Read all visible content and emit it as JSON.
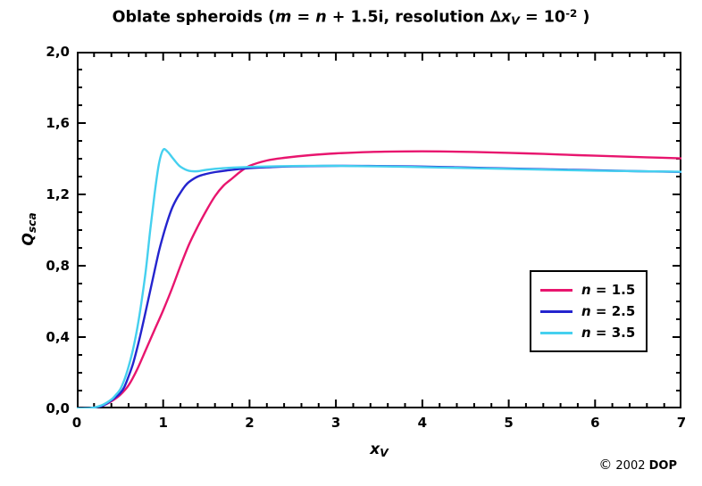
{
  "title": {
    "segments": [
      {
        "t": "Oblate spheroids (",
        "s": "b"
      },
      {
        "t": "m",
        "s": "bi"
      },
      {
        "t": " = ",
        "s": "b"
      },
      {
        "t": "n",
        "s": "bi"
      },
      {
        "t": " + 1.5i, resolution ∆",
        "s": "b"
      },
      {
        "t": "x",
        "s": "bi"
      },
      {
        "t": "V",
        "s": "bi-sub"
      },
      {
        "t": " = 10",
        "s": "b"
      },
      {
        "t": "-2",
        "s": "b-sup"
      },
      {
        "t": " )",
        "s": "b"
      }
    ]
  },
  "y_axis": {
    "label_segments": [
      {
        "t": "Q",
        "s": "bi"
      },
      {
        "t": "sca",
        "s": "bi-sub"
      }
    ],
    "ticks": [
      {
        "v": 0.0,
        "label": "0,0"
      },
      {
        "v": 0.4,
        "label": "0,4"
      },
      {
        "v": 0.8,
        "label": "0,8"
      },
      {
        "v": 1.2,
        "label": "1,2"
      },
      {
        "v": 1.6,
        "label": "1,6"
      },
      {
        "v": 2.0,
        "label": "2,0"
      }
    ]
  },
  "x_axis": {
    "label_segments": [
      {
        "t": "x",
        "s": "bi"
      },
      {
        "t": "V",
        "s": "bi-sub"
      }
    ],
    "ticks": [
      {
        "v": 0,
        "label": "0"
      },
      {
        "v": 1,
        "label": "1"
      },
      {
        "v": 2,
        "label": "2"
      },
      {
        "v": 3,
        "label": "3"
      },
      {
        "v": 4,
        "label": "4"
      },
      {
        "v": 5,
        "label": "5"
      },
      {
        "v": 6,
        "label": "6"
      },
      {
        "v": 7,
        "label": "7"
      }
    ]
  },
  "legend": {
    "items": [
      {
        "series": 0,
        "segments": [
          {
            "t": "n",
            "s": "bi"
          },
          {
            "t": " = 1.5",
            "s": "b"
          }
        ]
      },
      {
        "series": 1,
        "segments": [
          {
            "t": "n",
            "s": "bi"
          },
          {
            "t": " = 2.5",
            "s": "b"
          }
        ]
      },
      {
        "series": 2,
        "segments": [
          {
            "t": "n",
            "s": "bi"
          },
          {
            "t": " = 3.5",
            "s": "b"
          }
        ]
      }
    ]
  },
  "footer": {
    "segments": [
      {
        "t": "©",
        "s": "sym"
      },
      {
        "t": " 2002  ",
        "s": "r"
      },
      {
        "t": "DOP",
        "s": "b"
      }
    ]
  },
  "chart_data": {
    "type": "line",
    "title": "Oblate spheroids (m = n + 1.5i, resolution Δx_V = 10^-2 )",
    "xlabel": "x_V",
    "ylabel": "Q_sca",
    "xlim": [
      0,
      7
    ],
    "ylim": [
      0,
      2
    ],
    "x_major_tick": 1,
    "x_minor_tick": 0.2,
    "y_major_tick": 0.4,
    "y_minor_tick": 0.1,
    "decimal_separator": ",",
    "grid": false,
    "legend_position": "inside-right-middle",
    "series": [
      {
        "name": "n = 1.5",
        "color": "#e8156e",
        "points": [
          [
            0,
            0
          ],
          [
            0.1,
            0
          ],
          [
            0.2,
            0.005
          ],
          [
            0.3,
            0.015
          ],
          [
            0.4,
            0.04
          ],
          [
            0.5,
            0.075
          ],
          [
            0.6,
            0.13
          ],
          [
            0.7,
            0.22
          ],
          [
            0.8,
            0.33
          ],
          [
            0.9,
            0.44
          ],
          [
            1.0,
            0.55
          ],
          [
            1.1,
            0.67
          ],
          [
            1.2,
            0.8
          ],
          [
            1.3,
            0.92
          ],
          [
            1.4,
            1.02
          ],
          [
            1.5,
            1.11
          ],
          [
            1.6,
            1.19
          ],
          [
            1.7,
            1.25
          ],
          [
            1.8,
            1.29
          ],
          [
            1.9,
            1.33
          ],
          [
            2.0,
            1.36
          ],
          [
            2.2,
            1.39
          ],
          [
            2.4,
            1.405
          ],
          [
            2.7,
            1.42
          ],
          [
            3.0,
            1.43
          ],
          [
            3.4,
            1.438
          ],
          [
            3.8,
            1.441
          ],
          [
            4.2,
            1.441
          ],
          [
            4.6,
            1.438
          ],
          [
            5.0,
            1.433
          ],
          [
            5.4,
            1.427
          ],
          [
            5.8,
            1.42
          ],
          [
            6.2,
            1.414
          ],
          [
            6.6,
            1.408
          ],
          [
            7.0,
            1.402
          ]
        ]
      },
      {
        "name": "n = 2.5",
        "color": "#2424ce",
        "points": [
          [
            0,
            0
          ],
          [
            0.1,
            0
          ],
          [
            0.2,
            0.005
          ],
          [
            0.3,
            0.015
          ],
          [
            0.4,
            0.045
          ],
          [
            0.5,
            0.085
          ],
          [
            0.55,
            0.12
          ],
          [
            0.6,
            0.18
          ],
          [
            0.65,
            0.25
          ],
          [
            0.7,
            0.34
          ],
          [
            0.75,
            0.44
          ],
          [
            0.8,
            0.55
          ],
          [
            0.85,
            0.66
          ],
          [
            0.9,
            0.77
          ],
          [
            0.95,
            0.88
          ],
          [
            1.0,
            0.97
          ],
          [
            1.05,
            1.05
          ],
          [
            1.1,
            1.12
          ],
          [
            1.15,
            1.17
          ],
          [
            1.2,
            1.21
          ],
          [
            1.25,
            1.245
          ],
          [
            1.3,
            1.27
          ],
          [
            1.4,
            1.3
          ],
          [
            1.5,
            1.315
          ],
          [
            1.6,
            1.325
          ],
          [
            1.8,
            1.338
          ],
          [
            2.0,
            1.347
          ],
          [
            2.2,
            1.352
          ],
          [
            2.5,
            1.357
          ],
          [
            3.0,
            1.36
          ],
          [
            3.5,
            1.359
          ],
          [
            4.0,
            1.356
          ],
          [
            4.5,
            1.351
          ],
          [
            5.0,
            1.345
          ],
          [
            5.5,
            1.34
          ],
          [
            6.0,
            1.335
          ],
          [
            6.5,
            1.33
          ],
          [
            7.0,
            1.326
          ]
        ]
      },
      {
        "name": "n = 3.5",
        "color": "#45d0ef",
        "points": [
          [
            0,
            0
          ],
          [
            0.1,
            0
          ],
          [
            0.2,
            0.005
          ],
          [
            0.3,
            0.02
          ],
          [
            0.4,
            0.05
          ],
          [
            0.45,
            0.075
          ],
          [
            0.5,
            0.105
          ],
          [
            0.55,
            0.16
          ],
          [
            0.6,
            0.235
          ],
          [
            0.65,
            0.33
          ],
          [
            0.7,
            0.45
          ],
          [
            0.75,
            0.6
          ],
          [
            0.8,
            0.78
          ],
          [
            0.85,
            1.0
          ],
          [
            0.9,
            1.2
          ],
          [
            0.95,
            1.37
          ],
          [
            1.0,
            1.45
          ],
          [
            1.05,
            1.44
          ],
          [
            1.1,
            1.41
          ],
          [
            1.15,
            1.38
          ],
          [
            1.2,
            1.355
          ],
          [
            1.3,
            1.332
          ],
          [
            1.4,
            1.33
          ],
          [
            1.5,
            1.338
          ],
          [
            1.7,
            1.347
          ],
          [
            2.0,
            1.354
          ],
          [
            2.5,
            1.359
          ],
          [
            3.0,
            1.36
          ],
          [
            3.5,
            1.357
          ],
          [
            4.0,
            1.353
          ],
          [
            4.5,
            1.348
          ],
          [
            5.0,
            1.343
          ],
          [
            5.5,
            1.338
          ],
          [
            6.0,
            1.333
          ],
          [
            6.5,
            1.33
          ],
          [
            7.0,
            1.327
          ]
        ]
      }
    ]
  }
}
